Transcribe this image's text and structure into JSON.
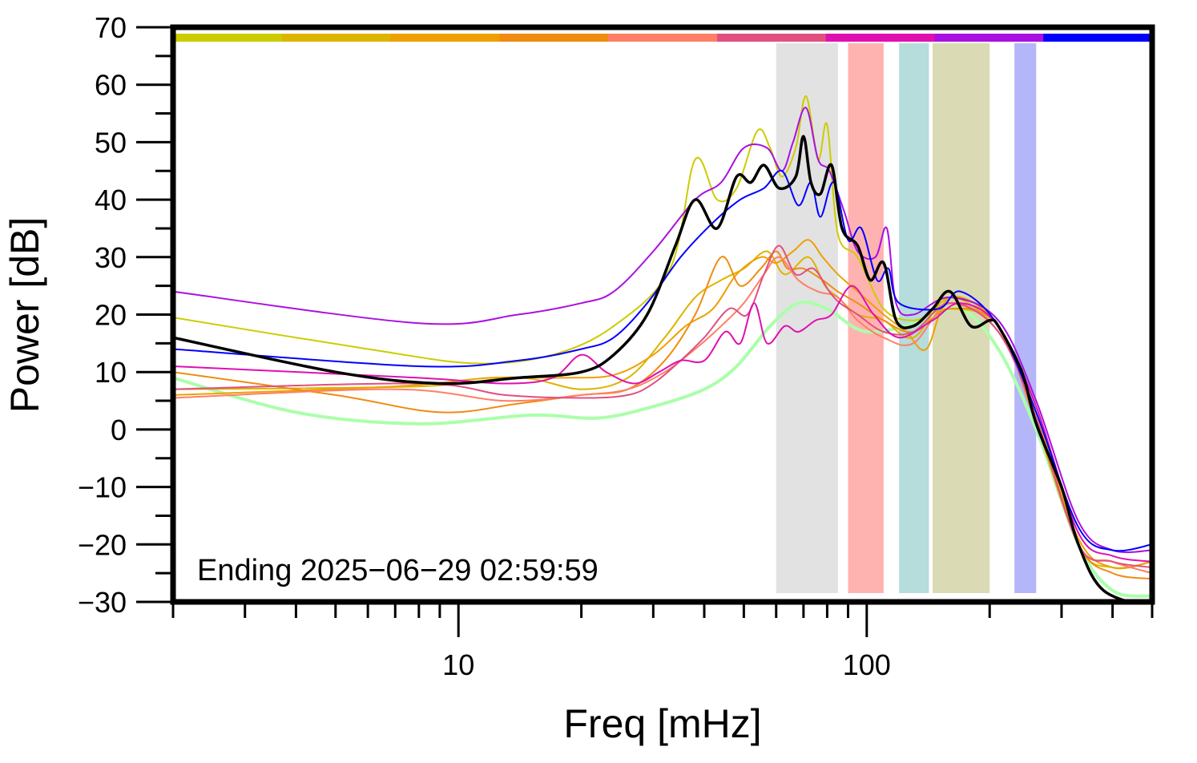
{
  "chart_data": {
    "type": "line",
    "xlabel": "Freq [mHz]",
    "ylabel": "Power [dB]",
    "x_scale": "log",
    "xlim": [
      2,
      500
    ],
    "ylim": [
      -30,
      70
    ],
    "x_ticks": [
      10,
      100
    ],
    "y_ticks": [
      -30,
      -20,
      -10,
      0,
      10,
      20,
      30,
      40,
      50,
      60,
      70
    ],
    "annotation": "Ending 2025−06−29 02:59:59",
    "grid": false,
    "bands": [
      {
        "x0": 60,
        "x1": 85,
        "color": "#e2e2e2"
      },
      {
        "x0": 90,
        "x1": 110,
        "color": "#ffb3b1"
      },
      {
        "x0": 120,
        "x1": 142,
        "color": "#b6dcdc"
      },
      {
        "x0": 145,
        "x1": 200,
        "color": "#dadab4"
      },
      {
        "x0": 230,
        "x1": 260,
        "color": "#b5b5f9"
      }
    ],
    "hour_bar": [
      "#cccc00",
      "#ddb400",
      "#eea000",
      "#f08c10",
      "#ff7f66",
      "#e05080",
      "#e010b0",
      "#aa10e0",
      "#0000ff"
    ],
    "series": [
      {
        "color": "#aaffaa",
        "width": 4,
        "points": [
          [
            2,
            9
          ],
          [
            4,
            3
          ],
          [
            8,
            1
          ],
          [
            15,
            2.5
          ],
          [
            22,
            2
          ],
          [
            30,
            4
          ],
          [
            40,
            7
          ],
          [
            48,
            11
          ],
          [
            58,
            18
          ],
          [
            68,
            22
          ],
          [
            80,
            21
          ],
          [
            100,
            17
          ],
          [
            140,
            19
          ],
          [
            170,
            21
          ],
          [
            210,
            14
          ],
          [
            260,
            0
          ],
          [
            330,
            -20
          ],
          [
            400,
            -28
          ],
          [
            500,
            -29
          ]
        ]
      },
      {
        "color": "#cccc00",
        "width": 2,
        "points": [
          [
            2,
            19.5
          ],
          [
            6,
            14
          ],
          [
            11,
            11.5
          ],
          [
            17,
            13
          ],
          [
            24,
            18
          ],
          [
            33,
            28
          ],
          [
            38,
            47
          ],
          [
            43,
            40
          ],
          [
            48,
            42
          ],
          [
            54,
            52
          ],
          [
            58,
            49
          ],
          [
            62,
            44
          ],
          [
            67,
            49
          ],
          [
            71,
            58
          ],
          [
            76,
            47
          ],
          [
            80,
            53
          ],
          [
            85,
            34
          ],
          [
            95,
            30
          ],
          [
            110,
            21
          ],
          [
            130,
            19
          ],
          [
            160,
            21
          ],
          [
            210,
            18
          ],
          [
            260,
            2
          ],
          [
            330,
            -20
          ],
          [
            400,
            -23
          ],
          [
            500,
            -25
          ]
        ]
      },
      {
        "color": "#ddb400",
        "width": 2,
        "points": [
          [
            2,
            7
          ],
          [
            8,
            7.5
          ],
          [
            14,
            9
          ],
          [
            20,
            7
          ],
          [
            26,
            9
          ],
          [
            32,
            16
          ],
          [
            38,
            23
          ],
          [
            44,
            26
          ],
          [
            50,
            28
          ],
          [
            57,
            31
          ],
          [
            63,
            27
          ],
          [
            72,
            30
          ],
          [
            79,
            25
          ],
          [
            85,
            23
          ],
          [
            95,
            20
          ],
          [
            110,
            19
          ],
          [
            130,
            16
          ],
          [
            160,
            23
          ],
          [
            210,
            17
          ],
          [
            260,
            3
          ],
          [
            330,
            -20
          ],
          [
            400,
            -24
          ],
          [
            500,
            -23
          ]
        ]
      },
      {
        "color": "#eea000",
        "width": 2,
        "points": [
          [
            2,
            6
          ],
          [
            7,
            7.5
          ],
          [
            12,
            9
          ],
          [
            18,
            9
          ],
          [
            24,
            9.5
          ],
          [
            30,
            13
          ],
          [
            36,
            18
          ],
          [
            42,
            21
          ],
          [
            48,
            27
          ],
          [
            55,
            30
          ],
          [
            60,
            29
          ],
          [
            66,
            31
          ],
          [
            72,
            33
          ],
          [
            78,
            30
          ],
          [
            85,
            27
          ],
          [
            95,
            24
          ],
          [
            110,
            20
          ],
          [
            125,
            17
          ],
          [
            140,
            14
          ],
          [
            160,
            23
          ],
          [
            210,
            18
          ],
          [
            260,
            2
          ],
          [
            330,
            -19
          ],
          [
            400,
            -24
          ],
          [
            500,
            -23
          ]
        ]
      },
      {
        "color": "#f08c10",
        "width": 2,
        "points": [
          [
            2,
            10
          ],
          [
            5,
            6
          ],
          [
            9,
            3
          ],
          [
            14,
            4.5
          ],
          [
            20,
            6
          ],
          [
            26,
            7
          ],
          [
            32,
            12
          ],
          [
            38,
            20
          ],
          [
            44,
            30
          ],
          [
            49,
            25
          ],
          [
            55,
            28
          ],
          [
            60,
            31
          ],
          [
            64,
            28
          ],
          [
            70,
            28
          ],
          [
            78,
            26
          ],
          [
            85,
            24
          ],
          [
            95,
            22
          ],
          [
            110,
            19
          ],
          [
            130,
            17
          ],
          [
            160,
            21
          ],
          [
            210,
            18
          ],
          [
            260,
            1
          ],
          [
            330,
            -20
          ],
          [
            400,
            -25
          ],
          [
            500,
            -26
          ]
        ]
      },
      {
        "color": "#ff7f66",
        "width": 2,
        "points": [
          [
            2,
            5.5
          ],
          [
            7,
            7
          ],
          [
            13,
            5
          ],
          [
            20,
            6
          ],
          [
            26,
            7
          ],
          [
            32,
            10
          ],
          [
            38,
            14
          ],
          [
            44,
            18
          ],
          [
            50,
            22
          ],
          [
            56,
            27
          ],
          [
            61,
            30
          ],
          [
            68,
            26
          ],
          [
            76,
            24
          ],
          [
            85,
            23
          ],
          [
            95,
            19
          ],
          [
            110,
            16
          ],
          [
            130,
            15
          ],
          [
            160,
            22
          ],
          [
            210,
            17
          ],
          [
            260,
            2
          ],
          [
            330,
            -20
          ],
          [
            400,
            -23
          ],
          [
            500,
            -25
          ]
        ]
      },
      {
        "color": "#e05080",
        "width": 2,
        "points": [
          [
            2,
            7
          ],
          [
            8,
            8
          ],
          [
            13,
            6
          ],
          [
            20,
            5.5
          ],
          [
            26,
            6
          ],
          [
            30,
            8
          ],
          [
            35,
            12
          ],
          [
            40,
            16
          ],
          [
            46,
            21
          ],
          [
            51,
            20
          ],
          [
            56,
            27
          ],
          [
            61,
            32
          ],
          [
            67,
            27
          ],
          [
            74,
            28
          ],
          [
            81,
            24
          ],
          [
            86,
            22
          ],
          [
            95,
            20
          ],
          [
            110,
            17
          ],
          [
            130,
            17
          ],
          [
            160,
            22
          ],
          [
            210,
            17
          ],
          [
            260,
            2
          ],
          [
            330,
            -20
          ],
          [
            400,
            -23
          ],
          [
            500,
            -24
          ]
        ]
      },
      {
        "color": "#e010b0",
        "width": 2,
        "points": [
          [
            2,
            11
          ],
          [
            8,
            9
          ],
          [
            13,
            8
          ],
          [
            17,
            9
          ],
          [
            20,
            13
          ],
          [
            23,
            10
          ],
          [
            27,
            8
          ],
          [
            31,
            10
          ],
          [
            35,
            12
          ],
          [
            40,
            12
          ],
          [
            45,
            17
          ],
          [
            49,
            15
          ],
          [
            53,
            22
          ],
          [
            57,
            15
          ],
          [
            63,
            18
          ],
          [
            68,
            17
          ],
          [
            75,
            19
          ],
          [
            82,
            20
          ],
          [
            92,
            25
          ],
          [
            104,
            20
          ],
          [
            120,
            16
          ],
          [
            145,
            19
          ],
          [
            170,
            22
          ],
          [
            210,
            18
          ],
          [
            260,
            4
          ],
          [
            330,
            -18
          ],
          [
            400,
            -22
          ],
          [
            500,
            -23
          ]
        ]
      },
      {
        "color": "#aa10e0",
        "width": 2,
        "points": [
          [
            2,
            24
          ],
          [
            8,
            18.5
          ],
          [
            14,
            20
          ],
          [
            20,
            22
          ],
          [
            24,
            24
          ],
          [
            30,
            31
          ],
          [
            38,
            40
          ],
          [
            44,
            43
          ],
          [
            50,
            49
          ],
          [
            57,
            49
          ],
          [
            62,
            45
          ],
          [
            66,
            50
          ],
          [
            71,
            56
          ],
          [
            76,
            47
          ],
          [
            81,
            45
          ],
          [
            88,
            38
          ],
          [
            95,
            31
          ],
          [
            105,
            30
          ],
          [
            112,
            35
          ],
          [
            118,
            22
          ],
          [
            130,
            20
          ],
          [
            160,
            23
          ],
          [
            210,
            19
          ],
          [
            260,
            5
          ],
          [
            330,
            -16
          ],
          [
            400,
            -21
          ],
          [
            500,
            -21
          ]
        ]
      },
      {
        "color": "#0000ff",
        "width": 2,
        "points": [
          [
            2,
            14
          ],
          [
            8,
            11
          ],
          [
            14,
            12
          ],
          [
            20,
            14
          ],
          [
            24,
            16
          ],
          [
            29,
            22
          ],
          [
            35,
            30
          ],
          [
            42,
            36
          ],
          [
            49,
            40
          ],
          [
            56,
            42
          ],
          [
            62,
            45
          ],
          [
            68,
            39
          ],
          [
            73,
            43
          ],
          [
            77,
            37
          ],
          [
            83,
            43
          ],
          [
            90,
            33
          ],
          [
            97,
            35
          ],
          [
            106,
            26
          ],
          [
            113,
            28
          ],
          [
            120,
            22
          ],
          [
            150,
            21
          ],
          [
            170,
            24
          ],
          [
            210,
            18
          ],
          [
            260,
            3
          ],
          [
            330,
            -17
          ],
          [
            400,
            -21
          ],
          [
            500,
            -20
          ]
        ]
      },
      {
        "color": "#000000",
        "width": 3.5,
        "points": [
          [
            2,
            16
          ],
          [
            5,
            10
          ],
          [
            9,
            8
          ],
          [
            14,
            9
          ],
          [
            20,
            10
          ],
          [
            24,
            13
          ],
          [
            29,
            20
          ],
          [
            34,
            32
          ],
          [
            38,
            40
          ],
          [
            43,
            35
          ],
          [
            48,
            44
          ],
          [
            52,
            43
          ],
          [
            56,
            46
          ],
          [
            61,
            42
          ],
          [
            67,
            44
          ],
          [
            70,
            51
          ],
          [
            73,
            43
          ],
          [
            77,
            41
          ],
          [
            82,
            46
          ],
          [
            87,
            35
          ],
          [
            95,
            32
          ],
          [
            102,
            26
          ],
          [
            110,
            29
          ],
          [
            118,
            19
          ],
          [
            130,
            18
          ],
          [
            145,
            21
          ],
          [
            160,
            24
          ],
          [
            180,
            18
          ],
          [
            200,
            19
          ],
          [
            210,
            18
          ],
          [
            240,
            10
          ],
          [
            260,
            1
          ],
          [
            300,
            -10
          ],
          [
            330,
            -20
          ],
          [
            380,
            -28
          ],
          [
            500,
            -31
          ]
        ]
      }
    ]
  }
}
